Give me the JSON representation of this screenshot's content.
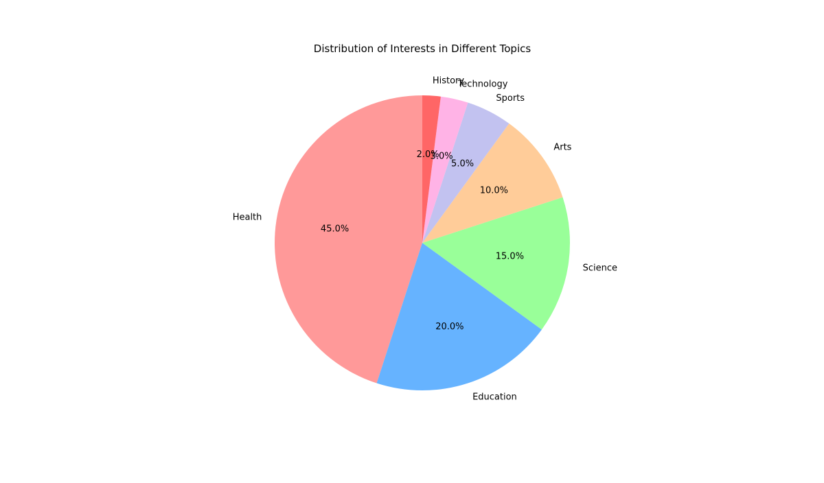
{
  "chart_data": {
    "type": "pie",
    "title": "Distribution of Interests in Different Topics",
    "categories": [
      "Health",
      "Education",
      "Science",
      "Arts",
      "Sports",
      "Technology",
      "History"
    ],
    "values": [
      45,
      20,
      15,
      10,
      5,
      3,
      2
    ],
    "percent_labels": [
      "45.0%",
      "20.0%",
      "15.0%",
      "10.0%",
      "5.0%",
      "3.0%",
      "2.0%"
    ],
    "colors": [
      "#ff9999",
      "#66b3ff",
      "#99ff99",
      "#ffcc99",
      "#c2c2f0",
      "#ffb3e6",
      "#ff6666"
    ],
    "start_angle_deg": 90,
    "direction": "counterclockwise",
    "legend": "none"
  }
}
